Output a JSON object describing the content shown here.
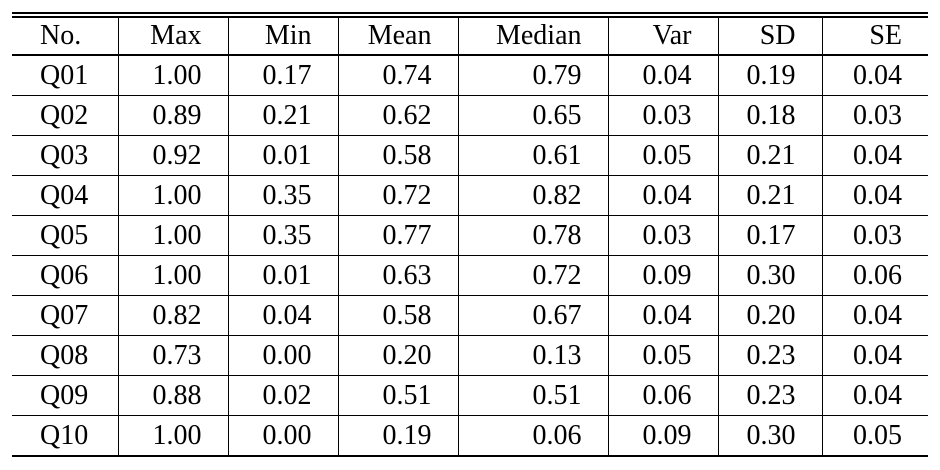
{
  "table": {
    "header": [
      "No.",
      "Max",
      "Min",
      "Mean",
      "Median",
      "Var",
      "SD",
      "SE"
    ],
    "rows": [
      [
        "Q01",
        "1.00",
        "0.17",
        "0.74",
        "0.79",
        "0.04",
        "0.19",
        "0.04"
      ],
      [
        "Q02",
        "0.89",
        "0.21",
        "0.62",
        "0.65",
        "0.03",
        "0.18",
        "0.03"
      ],
      [
        "Q03",
        "0.92",
        "0.01",
        "0.58",
        "0.61",
        "0.05",
        "0.21",
        "0.04"
      ],
      [
        "Q04",
        "1.00",
        "0.35",
        "0.72",
        "0.82",
        "0.04",
        "0.21",
        "0.04"
      ],
      [
        "Q05",
        "1.00",
        "0.35",
        "0.77",
        "0.78",
        "0.03",
        "0.17",
        "0.03"
      ],
      [
        "Q06",
        "1.00",
        "0.01",
        "0.63",
        "0.72",
        "0.09",
        "0.30",
        "0.06"
      ],
      [
        "Q07",
        "0.82",
        "0.04",
        "0.58",
        "0.67",
        "0.04",
        "0.20",
        "0.04"
      ],
      [
        "Q08",
        "0.73",
        "0.00",
        "0.20",
        "0.13",
        "0.05",
        "0.23",
        "0.04"
      ],
      [
        "Q09",
        "0.88",
        "0.02",
        "0.51",
        "0.51",
        "0.06",
        "0.23",
        "0.04"
      ],
      [
        "Q10",
        "1.00",
        "0.00",
        "0.19",
        "0.06",
        "0.09",
        "0.30",
        "0.05"
      ]
    ]
  }
}
